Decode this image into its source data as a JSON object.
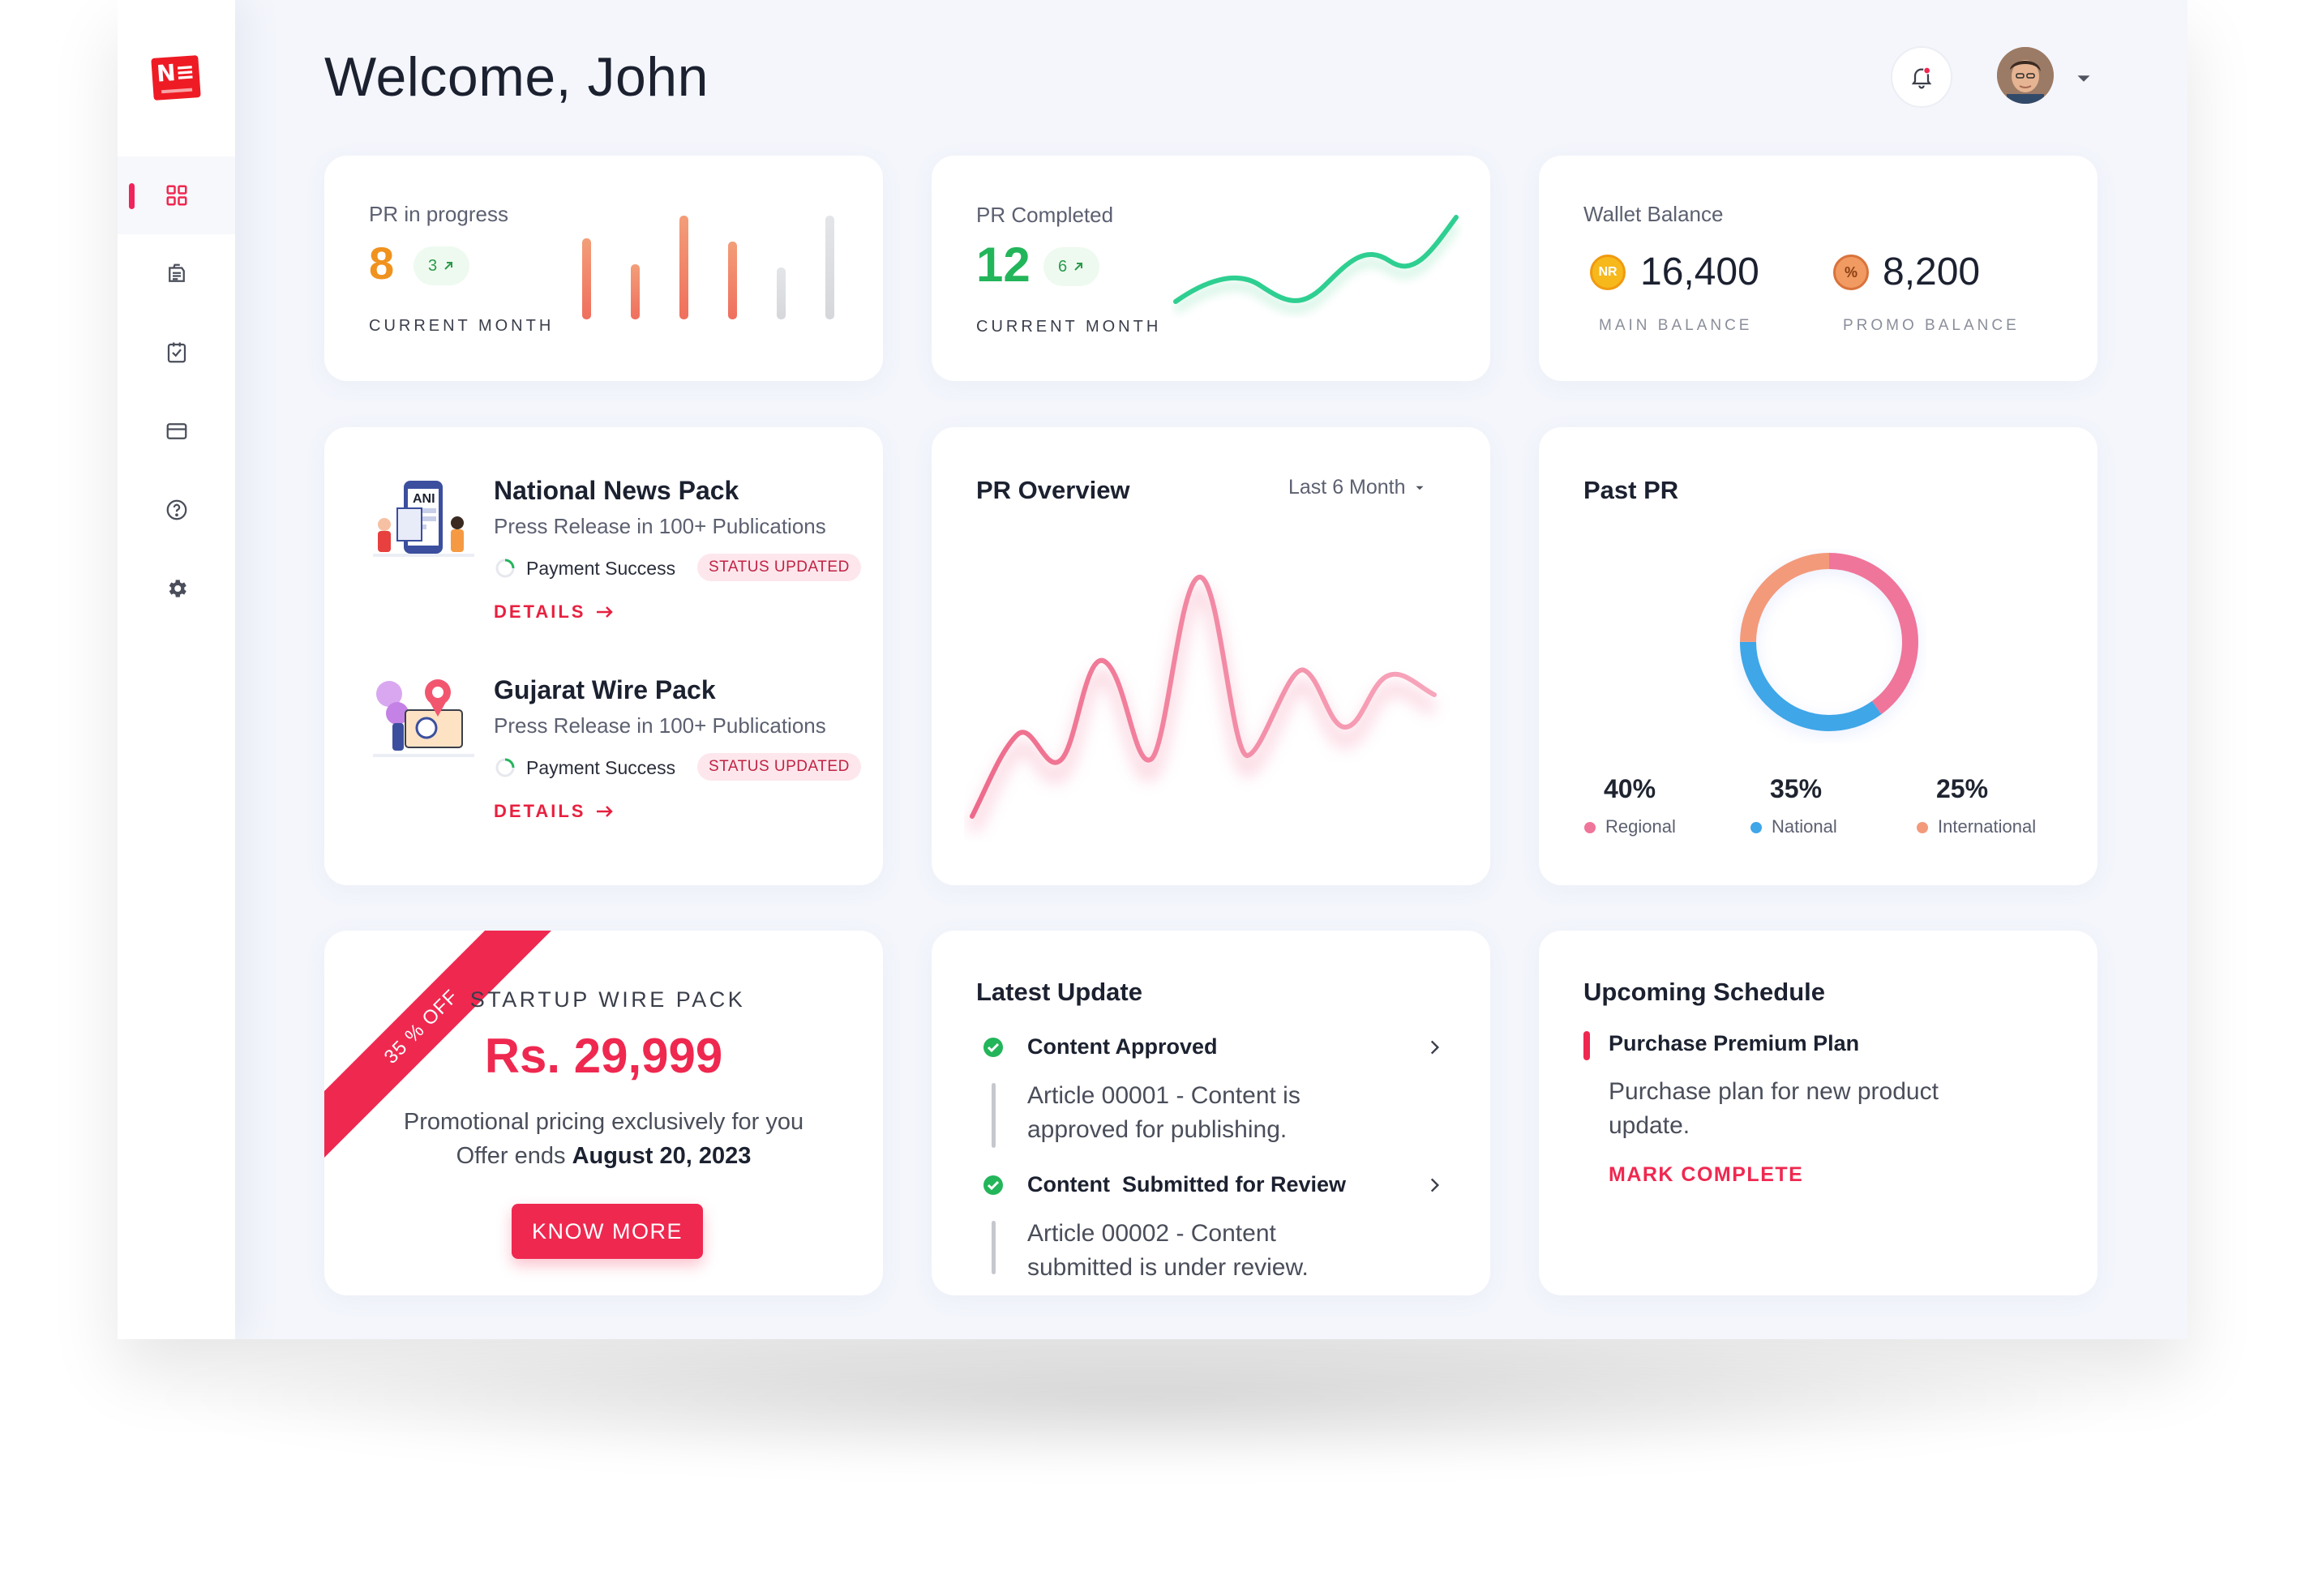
{
  "header": {
    "welcome": "Welcome, John"
  },
  "sidebar": {
    "items": [
      {
        "icon": "dashboard-grid-icon",
        "active": true
      },
      {
        "icon": "press-release-icon",
        "active": false
      },
      {
        "icon": "checklist-icon",
        "active": false
      },
      {
        "icon": "credit-card-icon",
        "active": false
      },
      {
        "icon": "help-icon",
        "active": false
      },
      {
        "icon": "gear-icon",
        "active": false
      }
    ]
  },
  "stats": {
    "pr_in_progress": {
      "label": "PR in progress",
      "value": "8",
      "delta": "3",
      "period": "CURRENT MONTH"
    },
    "pr_completed": {
      "label": "PR Completed",
      "value": "12",
      "delta": "6",
      "period": "CURRENT MONTH"
    },
    "wallet": {
      "label": "Wallet Balance",
      "main_value": "16,400",
      "main_label": "MAIN BALANCE",
      "main_icon_text": "NR",
      "promo_value": "8,200",
      "promo_label": "PROMO BALANCE",
      "promo_icon_text": "%"
    }
  },
  "packs": [
    {
      "title": "National News Pack",
      "subtitle": "Press Release in 100+ Publications",
      "payment": "Payment Success",
      "status": "STATUS UPDATED",
      "details": "DETAILS",
      "image_text": "ANI"
    },
    {
      "title": "Gujarat Wire Pack",
      "subtitle": "Press Release in 100+ Publications",
      "payment": "Payment Success",
      "status": "STATUS UPDATED",
      "details": "DETAILS"
    }
  ],
  "overview": {
    "title": "PR Overview",
    "range": "Last 6 Month"
  },
  "past_pr": {
    "title": "Past PR",
    "segments": [
      {
        "label": "Regional",
        "value": "40%",
        "color": "#f0759a"
      },
      {
        "label": "National",
        "value": "35%",
        "color": "#3fa6e8"
      },
      {
        "label": "International",
        "value": "25%",
        "color": "#f39a7b"
      }
    ]
  },
  "promo": {
    "ribbon": "35 % OFF",
    "pack": "STARTUP WIRE PACK",
    "price": "Rs. 29,999",
    "line1": "Promotional pricing exclusively for you",
    "line2_prefix": "Offer ends",
    "line2_date": "August 20, 2023",
    "cta": "KNOW MORE"
  },
  "latest": {
    "title": "Latest Update",
    "items": [
      {
        "title": "Content Approved",
        "text": [
          "Article 00001 - Content is",
          "approved for publishing."
        ]
      },
      {
        "title": "Content  Submitted for Review",
        "text": [
          "Article 00002 - Content",
          "submitted is under review."
        ]
      }
    ]
  },
  "schedule": {
    "title": "Upcoming Schedule",
    "item_title": "Purchase Premium Plan",
    "item_text": [
      "Purchase plan for new product",
      "update."
    ],
    "action": "MARK COMPLETE"
  },
  "colors": {
    "accent": "#ef2850",
    "orange": "#f0921e",
    "green": "#23b55a"
  }
}
